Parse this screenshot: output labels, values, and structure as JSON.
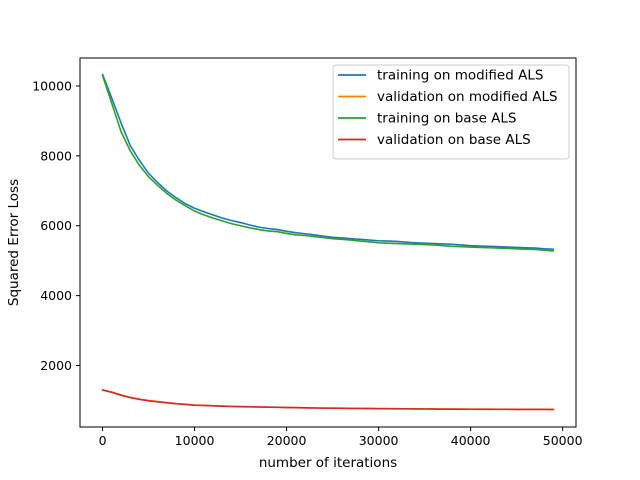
{
  "chart_data": {
    "type": "line",
    "title": "",
    "xlabel": "number of iterations",
    "ylabel": "Squared Error Loss",
    "xlim": [
      -2450,
      51450
    ],
    "ylim": [
      240,
      10800
    ],
    "x_ticks": [
      0,
      10000,
      20000,
      30000,
      40000,
      50000
    ],
    "x_tick_labels": [
      "0",
      "10000",
      "20000",
      "30000",
      "40000",
      "50000"
    ],
    "y_ticks": [
      2000,
      4000,
      6000,
      8000,
      10000
    ],
    "y_tick_labels": [
      "2000",
      "4000",
      "6000",
      "8000",
      "10000"
    ],
    "grid": false,
    "legend": "upper-right",
    "x": [
      0,
      1000,
      2000,
      3000,
      4000,
      5000,
      6000,
      7000,
      8000,
      9000,
      10000,
      11000,
      12000,
      13000,
      14000,
      15000,
      16000,
      17000,
      18000,
      19000,
      20000,
      21000,
      22000,
      23000,
      24000,
      25000,
      26000,
      27000,
      28000,
      29000,
      30000,
      31000,
      32000,
      33000,
      34000,
      35000,
      36000,
      37000,
      38000,
      39000,
      40000,
      41000,
      42000,
      43000,
      44000,
      45000,
      46000,
      47000,
      48000,
      49000
    ],
    "series": [
      {
        "name": "training on modified ALS",
        "color": "#1f77b4",
        "values": [
          10330,
          9650,
          8950,
          8300,
          7870,
          7500,
          7230,
          6990,
          6800,
          6630,
          6500,
          6400,
          6310,
          6220,
          6150,
          6090,
          6020,
          5960,
          5920,
          5890,
          5840,
          5800,
          5770,
          5740,
          5700,
          5670,
          5650,
          5630,
          5610,
          5590,
          5570,
          5560,
          5550,
          5530,
          5510,
          5500,
          5490,
          5480,
          5470,
          5450,
          5430,
          5420,
          5410,
          5400,
          5390,
          5380,
          5370,
          5360,
          5340,
          5330
        ]
      },
      {
        "name": "validation on modified ALS",
        "color": "#ff7f0e",
        "values": [
          1300,
          1240,
          1160,
          1090,
          1040,
          1000,
          970,
          940,
          910,
          890,
          870,
          860,
          850,
          840,
          830,
          825,
          820,
          815,
          810,
          805,
          800,
          795,
          790,
          785,
          782,
          780,
          778,
          775,
          772,
          770,
          768,
          766,
          764,
          762,
          760,
          758,
          756,
          754,
          752,
          750,
          750,
          750,
          749,
          748,
          748,
          747,
          746,
          745,
          745,
          744
        ]
      },
      {
        "name": "training on base ALS",
        "color": "#2ca02c",
        "values": [
          10300,
          9500,
          8700,
          8150,
          7730,
          7400,
          7150,
          6920,
          6730,
          6570,
          6420,
          6310,
          6220,
          6140,
          6060,
          6000,
          5940,
          5890,
          5850,
          5830,
          5780,
          5740,
          5720,
          5690,
          5660,
          5630,
          5610,
          5590,
          5560,
          5540,
          5510,
          5500,
          5490,
          5480,
          5470,
          5460,
          5450,
          5430,
          5410,
          5400,
          5390,
          5380,
          5370,
          5360,
          5350,
          5340,
          5330,
          5320,
          5300,
          5280
        ]
      },
      {
        "name": "validation on base ALS",
        "color": "#d62728",
        "values": [
          1300,
          1230,
          1150,
          1080,
          1030,
          990,
          960,
          930,
          905,
          885,
          865,
          855,
          845,
          835,
          828,
          822,
          817,
          812,
          807,
          802,
          797,
          792,
          788,
          784,
          780,
          778,
          775,
          772,
          770,
          768,
          765,
          763,
          761,
          759,
          757,
          755,
          753,
          751,
          750,
          749,
          748,
          747,
          746,
          745,
          745,
          744,
          743,
          742,
          742,
          741
        ]
      }
    ]
  }
}
